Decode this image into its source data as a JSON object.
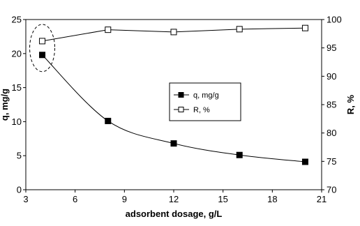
{
  "chart_data": {
    "type": "line",
    "title": "",
    "xlabel": "adsorbent dosage, g/L",
    "ylabel_left": "q, mg/g",
    "ylabel_right": "R, %",
    "xlim": [
      3,
      21
    ],
    "x_ticks": [
      3,
      6,
      9,
      12,
      15,
      18,
      21
    ],
    "ylim_left": [
      0,
      25
    ],
    "y_ticks_left": [
      0,
      5,
      10,
      15,
      20,
      25
    ],
    "ylim_right": [
      70,
      100
    ],
    "y_ticks_right": [
      70,
      75,
      80,
      85,
      90,
      95,
      100
    ],
    "grid": false,
    "legend_position": "center-right inside plot",
    "series": [
      {
        "name": "q, mg/g",
        "axis": "left",
        "marker": "filled-square",
        "color": "#000000",
        "x": [
          4,
          8,
          12,
          16,
          20
        ],
        "values": [
          19.8,
          10.1,
          6.8,
          5.1,
          4.1
        ]
      },
      {
        "name": "R, %",
        "axis": "right",
        "marker": "open-square",
        "color": "#000000",
        "x": [
          4,
          8,
          12,
          16,
          20
        ],
        "values": [
          96.2,
          98.2,
          97.8,
          98.3,
          98.5
        ]
      }
    ],
    "annotation": "dashed ellipse around first data points"
  }
}
